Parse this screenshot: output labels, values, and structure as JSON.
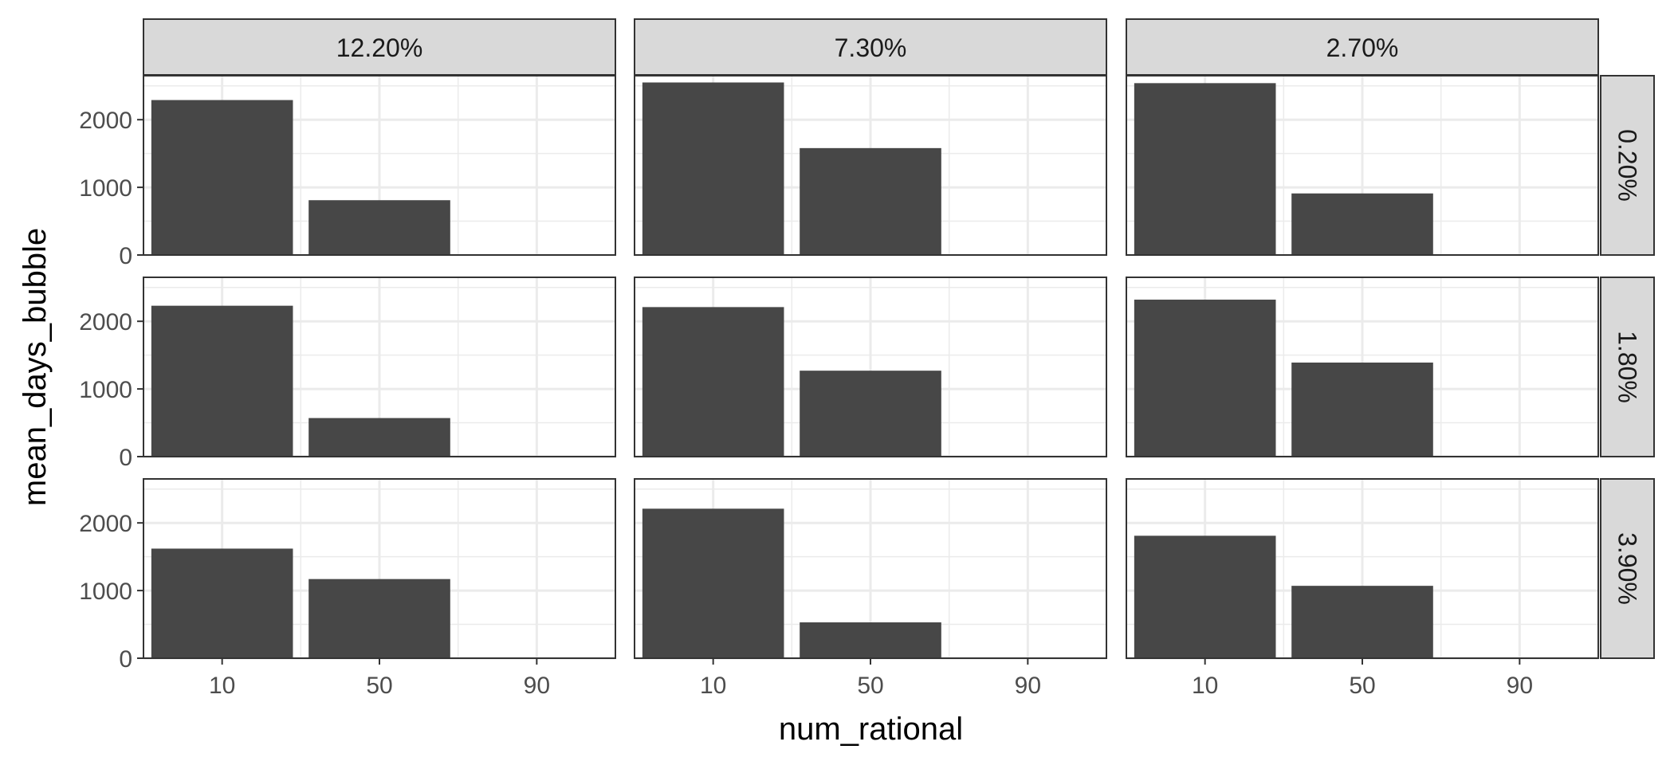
{
  "chart_data": {
    "type": "bar",
    "layout": "facet_grid",
    "xlabel": "num_rational",
    "ylabel": "mean_days_bubble",
    "x_ticks": [
      "10",
      "50",
      "90"
    ],
    "y_ticks": [
      "0",
      "1000",
      "2000"
    ],
    "ylim": [
      0,
      2650
    ],
    "xlim": [
      -10,
      110
    ],
    "bar_color": "#474747",
    "grid": true,
    "col_facets": [
      "12.20%",
      "7.30%",
      "2.70%"
    ],
    "row_facets": [
      "0.20%",
      "1.80%",
      "3.90%"
    ],
    "bars_x": [
      10,
      50,
      90
    ],
    "bar_width": 36,
    "values": [
      [
        [
          2290,
          810,
          0
        ],
        [
          2550,
          1580,
          0
        ],
        [
          2540,
          910,
          0
        ]
      ],
      [
        [
          2230,
          570,
          0
        ],
        [
          2210,
          1270,
          0
        ],
        [
          2320,
          1390,
          0
        ]
      ],
      [
        [
          1620,
          1170,
          0
        ],
        [
          2210,
          530,
          0
        ],
        [
          1810,
          1070,
          0
        ]
      ]
    ]
  }
}
